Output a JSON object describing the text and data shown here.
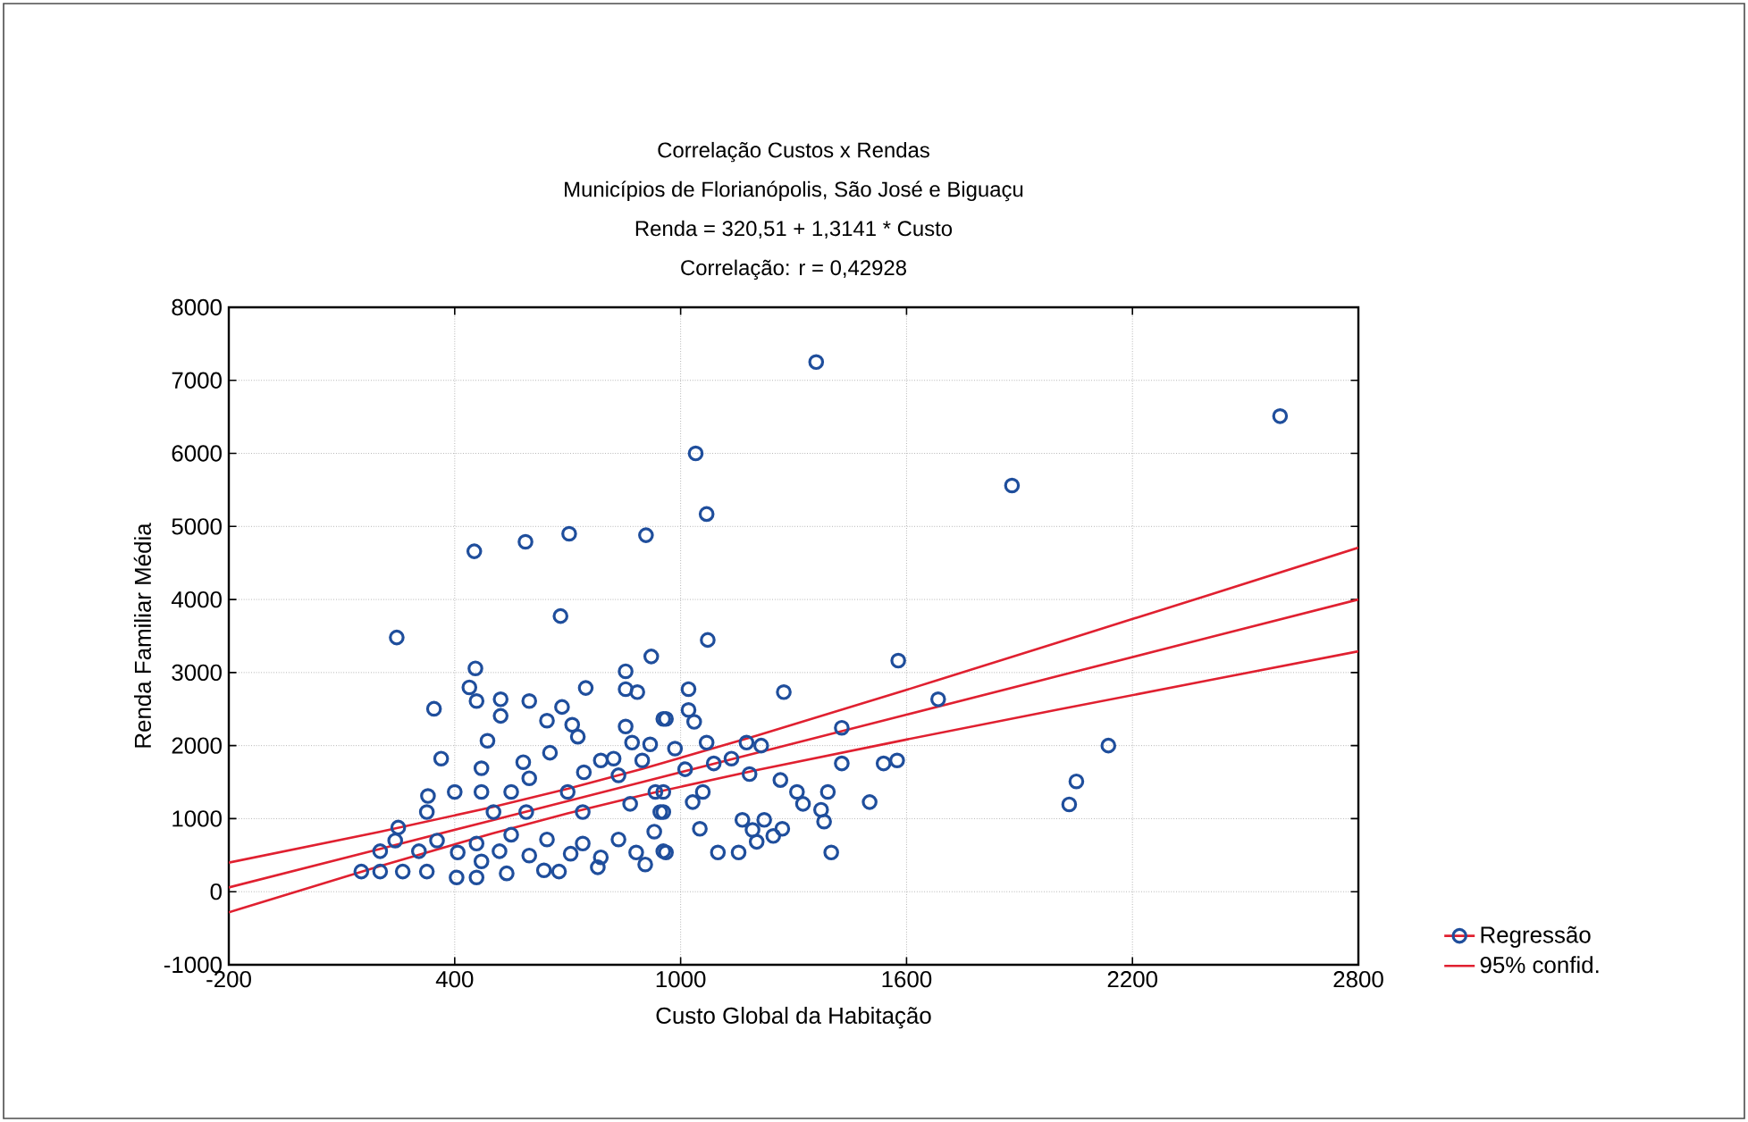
{
  "chart_data": {
    "type": "scatter",
    "title": "Correlação Custos x Rendas",
    "subtitle": "Municípios de Florianópolis, São José e Biguaçu",
    "annotations": [
      "Renda = 320,51 + 1,3141 * Custo",
      "Correlação: r = 0,42928"
    ],
    "xlabel": "Custo Global da Habitação",
    "ylabel": "Renda Familiar Média",
    "xlim": [
      -200,
      2800
    ],
    "xticks": [
      -200,
      400,
      1000,
      1600,
      2200,
      2800
    ],
    "ylim": [
      -1000,
      8000
    ],
    "yticks": [
      -1000,
      0,
      1000,
      2000,
      3000,
      4000,
      5000,
      6000,
      7000,
      8000
    ],
    "grid": true,
    "legend": "right",
    "marker": "circle",
    "series": [
      {
        "color": "#1f4e9c",
        "x": [
          1360,
          1040,
          452,
          588,
          704,
          908,
          1069,
          1880,
          2592,
          2136,
          2051,
          2032,
          1072,
          1578,
          1684,
          1021,
          1021,
          1036,
          961,
          985,
          1274,
          1428,
          1428,
          1539,
          1575,
          1069,
          1175,
          1214,
          1135,
          1088,
          1012,
          1183,
          1059,
          1032,
          1265,
          1309,
          1325,
          1391,
          1373,
          1381,
          1502,
          1164,
          1222,
          1191,
          1270,
          1246,
          1202,
          1051,
          1099,
          1154,
          1400,
          961,
          954,
          954,
          246,
          681,
          922,
          455,
          439,
          458,
          345,
          522,
          522,
          598,
          748,
          854,
          854,
          885,
          685,
          645,
          712,
          727,
          487,
          854,
          954,
          919,
          871,
          364,
          471,
          582,
          653,
          788,
          822,
          898,
          598,
          550,
          471,
          329,
          400,
          700,
          743,
          835,
          933,
          326,
          250,
          503,
          590,
          740,
          866,
          946,
          242,
          353,
          458,
          550,
          645,
          740,
          835,
          930,
          954,
          202,
          305,
          408,
          519,
          598,
          708,
          788,
          882,
          152,
          202,
          262,
          326,
          405,
          458,
          538,
          637,
          677,
          780,
          906,
          471
        ],
        "values": [
          7250,
          6000,
          4660,
          4790,
          4900,
          4880,
          5170,
          5560,
          6510,
          2000,
          1510,
          1195,
          3446,
          3163,
          2634,
          2773,
          2488,
          2325,
          2366,
          1959,
          2732,
          2244,
          1756,
          1756,
          1797,
          2041,
          2041,
          2000,
          1822,
          1756,
          1676,
          1610,
          1366,
          1227,
          1529,
          1366,
          1202,
          1366,
          1122,
          959,
          1227,
          983,
          983,
          846,
          861,
          763,
          683,
          861,
          537,
          537,
          537,
          537,
          1090,
          1366,
          3480,
          3773,
          3220,
          3057,
          2797,
          2610,
          2504,
          2634,
          2407,
          2610,
          2789,
          3017,
          2773,
          2732,
          2529,
          2341,
          2285,
          2122,
          2066,
          2261,
          2366,
          2017,
          2041,
          1822,
          1690,
          1773,
          1902,
          1797,
          1822,
          1797,
          1553,
          1366,
          1366,
          1310,
          1366,
          1366,
          1634,
          1593,
          1366,
          1090,
          878,
          1090,
          1090,
          1090,
          1202,
          1090,
          700,
          700,
          659,
          780,
          715,
          659,
          715,
          822,
          554,
          554,
          554,
          537,
          554,
          495,
          520,
          471,
          537,
          276,
          276,
          276,
          276,
          195,
          195,
          251,
          293,
          276,
          334,
          373,
          415
        ]
      },
      {
        "type": "line",
        "name": "Regressão",
        "marker": "none",
        "color": "#e02030",
        "x": [
          -200,
          200,
          500,
          700,
          900,
          1200,
          1600,
          2000,
          2400,
          2800
        ],
        "values": [
          58,
          583,
          978,
          1240,
          1503,
          1897,
          2423,
          2949,
          3474,
          4000
        ]
      },
      {
        "type": "line",
        "name": "95% confid.",
        "marker": "none",
        "color": "#e02030",
        "x": [
          -200,
          200,
          500,
          700,
          900,
          1200,
          1600,
          2000,
          2400,
          2800
        ],
        "values": [
          398,
          818,
          1158,
          1408,
          1683,
          2132,
          2763,
          3408,
          4057,
          4710
        ]
      },
      {
        "type": "line",
        "marker": "none",
        "color": "#e02030",
        "x": [
          -200,
          200,
          500,
          700,
          900,
          1200,
          1600,
          2000,
          2400,
          2800
        ],
        "values": [
          -282,
          348,
          798,
          1072,
          1323,
          1662,
          2083,
          2490,
          2891,
          3290
        ]
      }
    ]
  }
}
